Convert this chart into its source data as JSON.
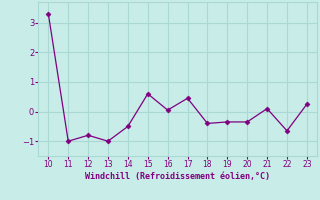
{
  "x": [
    10,
    11,
    12,
    13,
    14,
    15,
    16,
    17,
    18,
    19,
    20,
    21,
    22,
    23
  ],
  "y": [
    3.3,
    -1.0,
    -0.8,
    -1.0,
    -0.5,
    0.6,
    0.05,
    0.45,
    -0.4,
    -0.35,
    -0.35,
    0.1,
    -0.65,
    0.25
  ],
  "line_color": "#800080",
  "marker": "D",
  "marker_size": 2.5,
  "bg_color": "#c8ece8",
  "grid_color": "#aad8d4",
  "xlabel": "Windchill (Refroidissement éolien,°C)",
  "xlabel_color": "#800080",
  "tick_color": "#800080",
  "ylim": [
    -1.5,
    3.7
  ],
  "xlim": [
    9.5,
    23.5
  ],
  "yticks": [
    -1,
    0,
    1,
    2,
    3
  ],
  "xticks": [
    10,
    11,
    12,
    13,
    14,
    15,
    16,
    17,
    18,
    19,
    20,
    21,
    22,
    23
  ]
}
